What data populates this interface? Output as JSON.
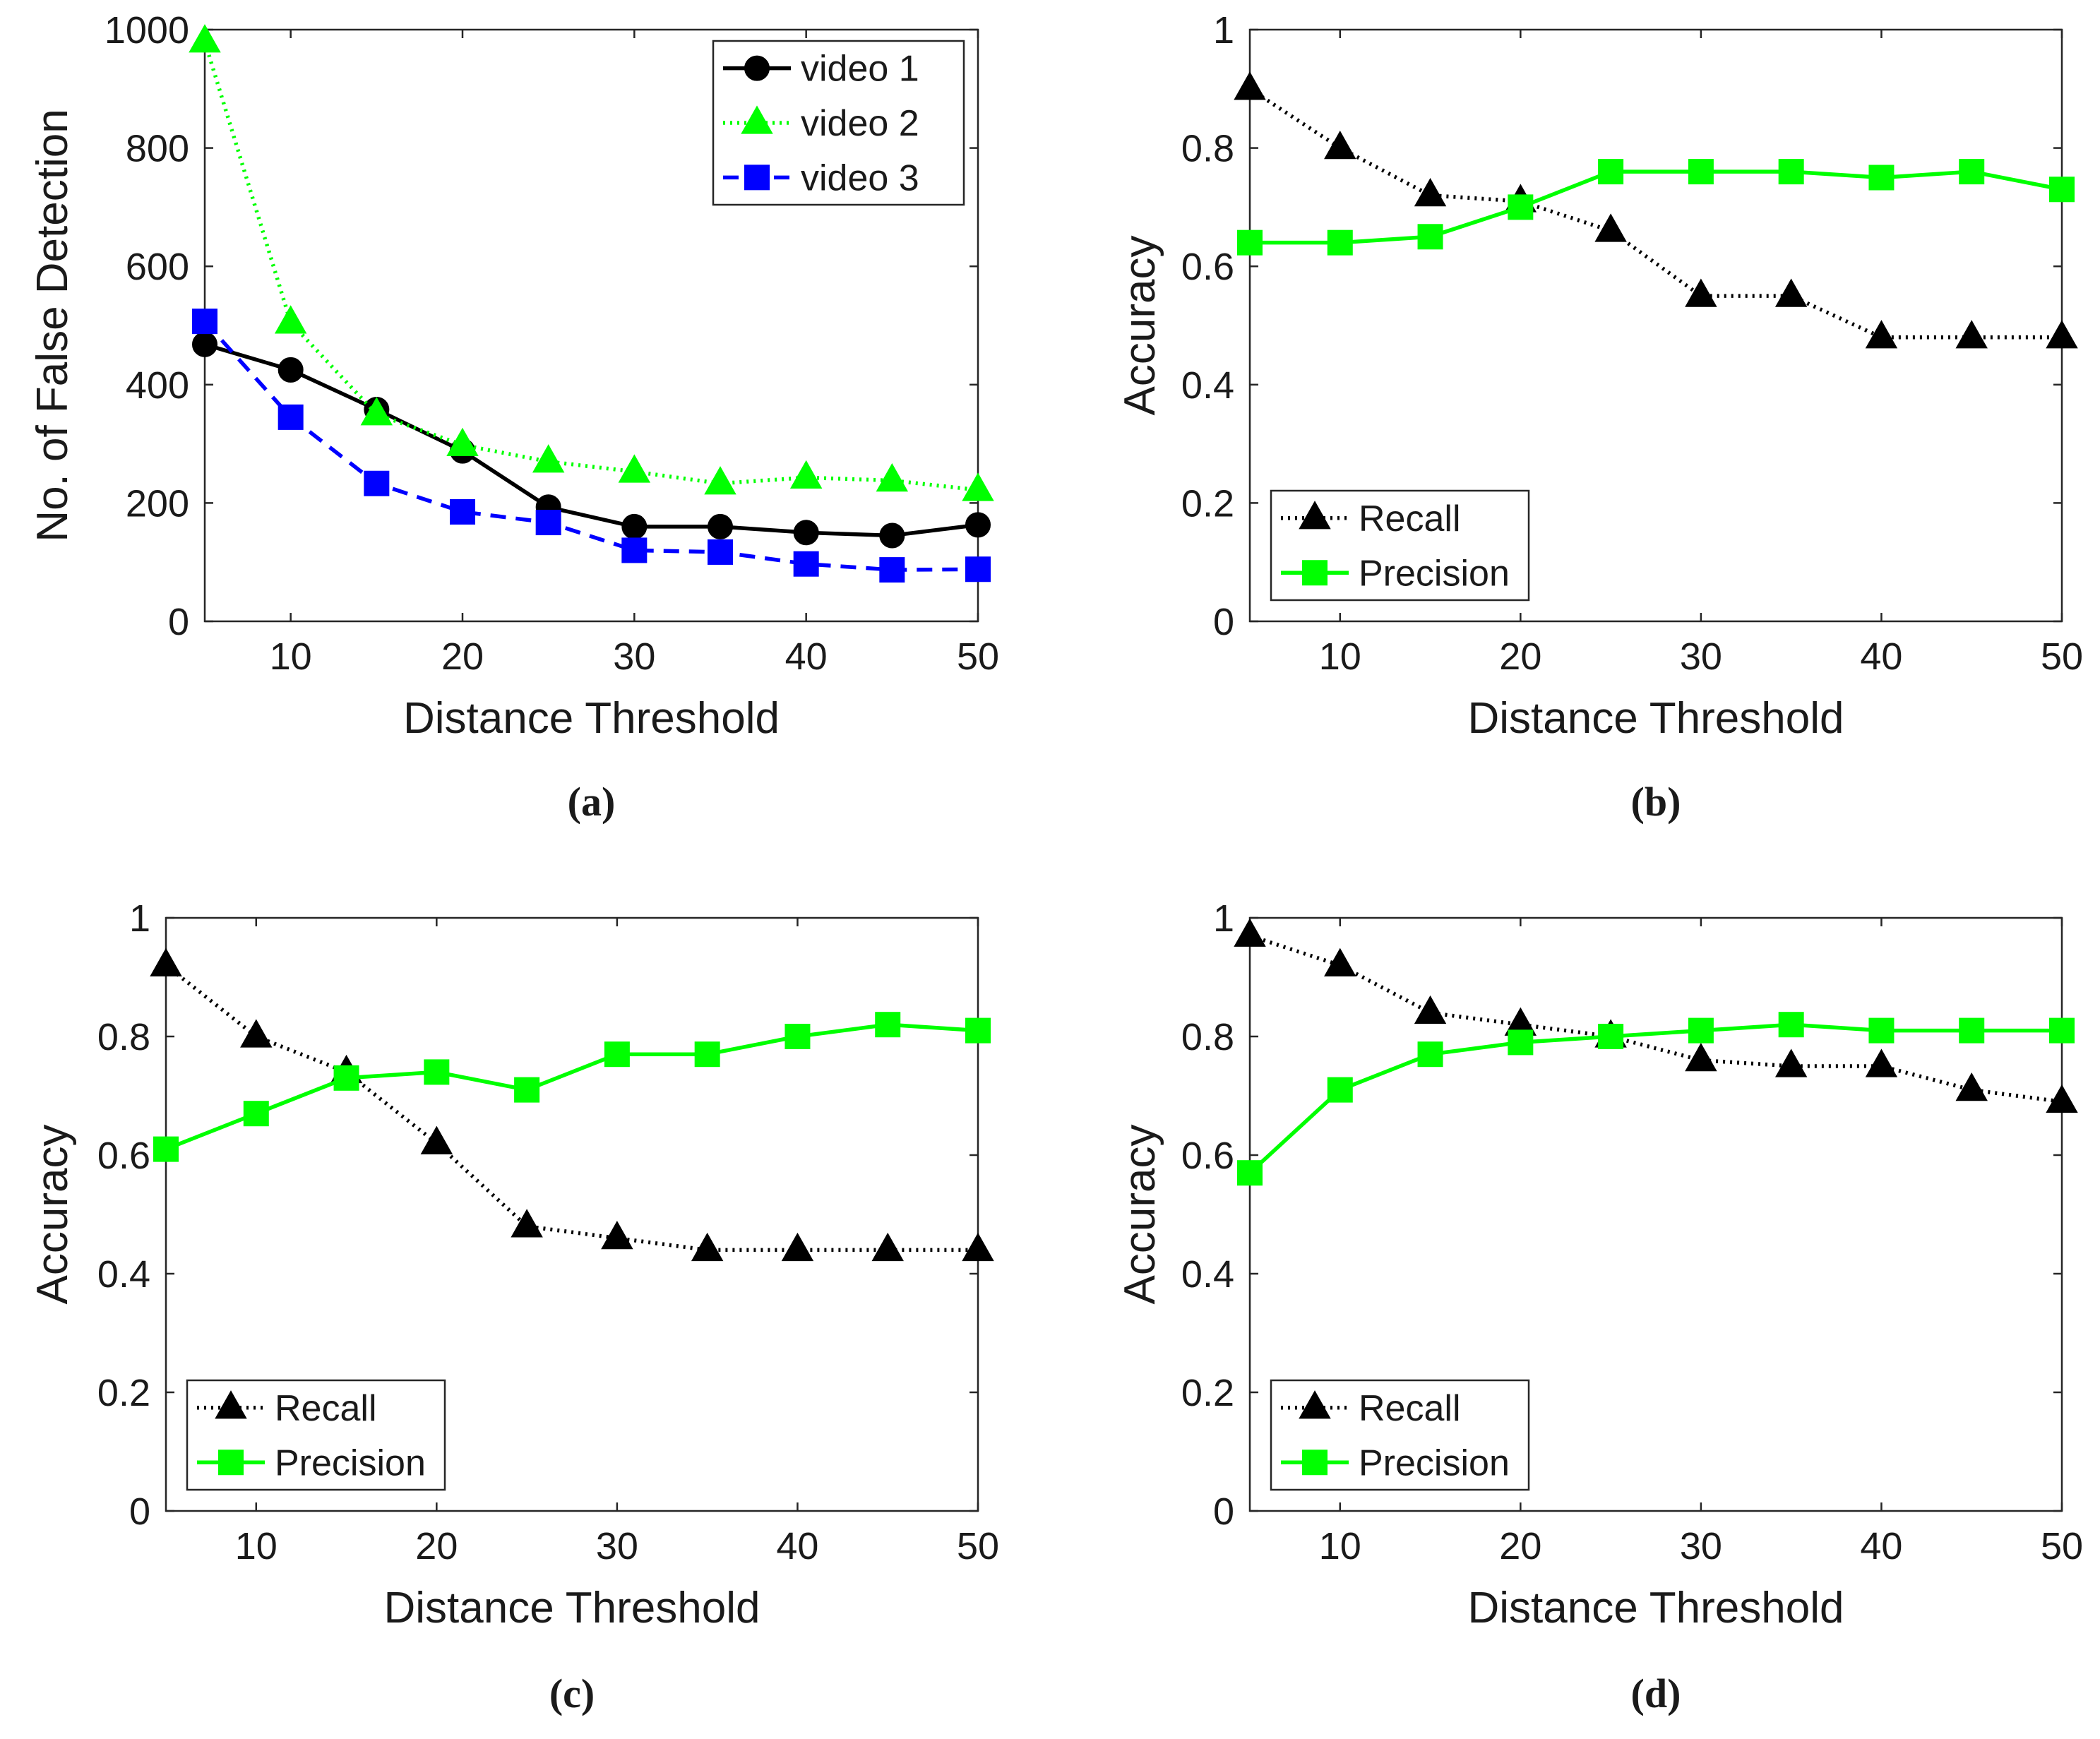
{
  "chart_data": [
    {
      "id": "a",
      "type": "line",
      "caption": "(a)",
      "xlabel": "Distance Threshold",
      "ylabel": "No. of False Detection",
      "xlim": [
        5,
        50
      ],
      "ylim": [
        0,
        1000
      ],
      "xticks": [
        10,
        20,
        30,
        40,
        50
      ],
      "yticks": [
        0,
        200,
        400,
        600,
        800,
        1000
      ],
      "x": [
        5,
        10,
        15,
        20,
        25,
        30,
        35,
        40,
        45,
        50
      ],
      "legend_position": "top-right",
      "series": [
        {
          "name": "video 1",
          "color": "#000000",
          "dash": "solid",
          "marker": "circle",
          "values": [
            468,
            425,
            358,
            288,
            193,
            160,
            160,
            150,
            145,
            163
          ]
        },
        {
          "name": "video 2",
          "color": "#00ff00",
          "dash": "dotted",
          "marker": "triangle",
          "values": [
            980,
            505,
            350,
            298,
            270,
            253,
            233,
            243,
            238,
            222
          ]
        },
        {
          "name": "video 3",
          "color": "#0000ff",
          "dash": "dashed",
          "marker": "square",
          "values": [
            507,
            345,
            233,
            185,
            167,
            120,
            117,
            97,
            87,
            88
          ]
        }
      ]
    },
    {
      "id": "b",
      "type": "line",
      "caption": "(b)",
      "xlabel": "Distance Threshold",
      "ylabel": "Accuracy",
      "xlim": [
        5,
        50
      ],
      "ylim": [
        0,
        1
      ],
      "xticks": [
        10,
        20,
        30,
        40,
        50
      ],
      "yticks": [
        0,
        0.2,
        0.4,
        0.6,
        0.8,
        1
      ],
      "x": [
        5,
        10,
        15,
        20,
        25,
        30,
        35,
        40,
        45,
        50
      ],
      "legend_position": "bottom-left",
      "series": [
        {
          "name": "Recall",
          "color": "#000000",
          "dash": "dotted",
          "marker": "triangle",
          "values": [
            0.9,
            0.8,
            0.72,
            0.71,
            0.66,
            0.55,
            0.55,
            0.48,
            0.48,
            0.48
          ]
        },
        {
          "name": "Precision",
          "color": "#00ff00",
          "dash": "solid",
          "marker": "square",
          "values": [
            0.64,
            0.64,
            0.65,
            0.7,
            0.76,
            0.76,
            0.76,
            0.75,
            0.76,
            0.73
          ]
        }
      ]
    },
    {
      "id": "c",
      "type": "line",
      "caption": "(c)",
      "xlabel": "Distance Threshold",
      "ylabel": "Accuracy",
      "xlim": [
        5,
        50
      ],
      "ylim": [
        0,
        1
      ],
      "xticks": [
        10,
        20,
        30,
        40,
        50
      ],
      "yticks": [
        0,
        0.2,
        0.4,
        0.6,
        0.8,
        1
      ],
      "x": [
        5,
        10,
        15,
        20,
        25,
        30,
        35,
        40,
        45,
        50
      ],
      "legend_position": "bottom-left",
      "series": [
        {
          "name": "Recall",
          "color": "#000000",
          "dash": "dotted",
          "marker": "triangle",
          "values": [
            0.92,
            0.8,
            0.74,
            0.62,
            0.48,
            0.46,
            0.44,
            0.44,
            0.44,
            0.44
          ]
        },
        {
          "name": "Precision",
          "color": "#00ff00",
          "dash": "solid",
          "marker": "square",
          "values": [
            0.61,
            0.67,
            0.73,
            0.74,
            0.71,
            0.77,
            0.77,
            0.8,
            0.82,
            0.81
          ]
        }
      ]
    },
    {
      "id": "d",
      "type": "line",
      "caption": "(d)",
      "xlabel": "Distance Threshold",
      "ylabel": "Accuracy",
      "xlim": [
        5,
        50
      ],
      "ylim": [
        0,
        1
      ],
      "xticks": [
        10,
        20,
        30,
        40,
        50
      ],
      "yticks": [
        0,
        0.2,
        0.4,
        0.6,
        0.8,
        1
      ],
      "x": [
        5,
        10,
        15,
        20,
        25,
        30,
        35,
        40,
        45,
        50
      ],
      "legend_position": "bottom-left",
      "series": [
        {
          "name": "Recall",
          "color": "#000000",
          "dash": "dotted",
          "marker": "triangle",
          "values": [
            0.97,
            0.92,
            0.84,
            0.82,
            0.8,
            0.76,
            0.75,
            0.75,
            0.71,
            0.69
          ]
        },
        {
          "name": "Precision",
          "color": "#00ff00",
          "dash": "solid",
          "marker": "square",
          "values": [
            0.57,
            0.71,
            0.77,
            0.79,
            0.8,
            0.81,
            0.82,
            0.81,
            0.81,
            0.81
          ]
        }
      ]
    }
  ]
}
